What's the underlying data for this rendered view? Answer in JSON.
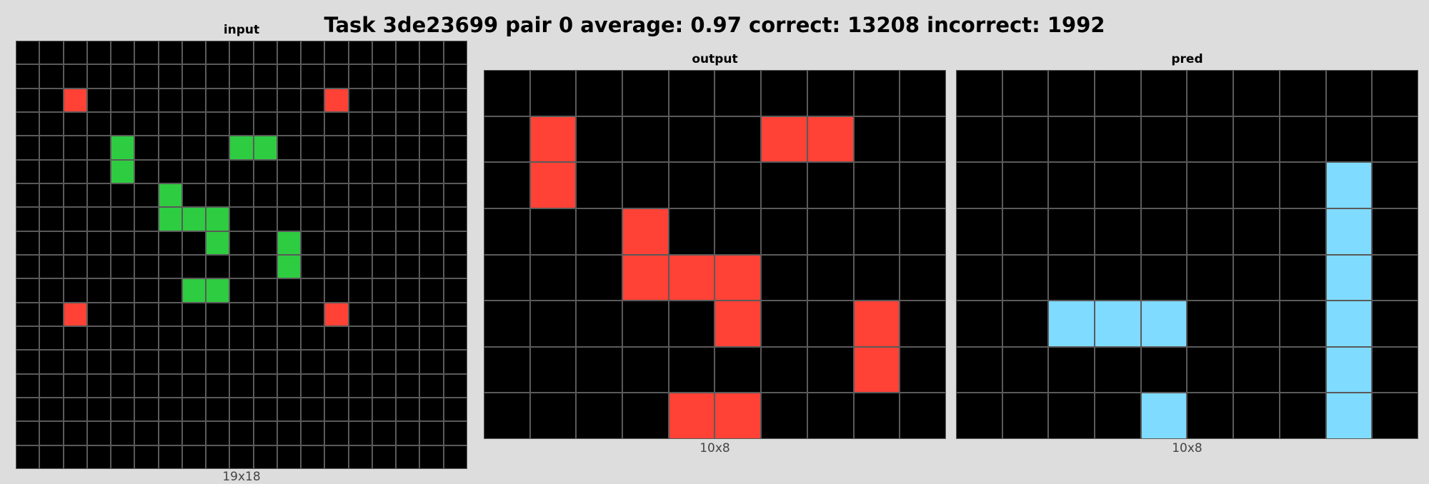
{
  "header": {
    "title": "Task 3de23699 pair 0 average: 0.97 correct: 13208 incorrect: 1992"
  },
  "palette": {
    "0": "#000000",
    "2": "#ff4136",
    "3": "#2ecc40",
    "8": "#7fdbff"
  },
  "panels": [
    {
      "title": "input",
      "dims": "19x18",
      "rows": [
        [
          0,
          0,
          0,
          0,
          0,
          0,
          0,
          0,
          0,
          0,
          0,
          0,
          0,
          0,
          0,
          0,
          0,
          0,
          0
        ],
        [
          0,
          0,
          0,
          0,
          0,
          0,
          0,
          0,
          0,
          0,
          0,
          0,
          0,
          0,
          0,
          0,
          0,
          0,
          0
        ],
        [
          0,
          0,
          2,
          0,
          0,
          0,
          0,
          0,
          0,
          0,
          0,
          0,
          0,
          2,
          0,
          0,
          0,
          0,
          0
        ],
        [
          0,
          0,
          0,
          0,
          0,
          0,
          0,
          0,
          0,
          0,
          0,
          0,
          0,
          0,
          0,
          0,
          0,
          0,
          0
        ],
        [
          0,
          0,
          0,
          0,
          3,
          0,
          0,
          0,
          0,
          3,
          3,
          0,
          0,
          0,
          0,
          0,
          0,
          0,
          0
        ],
        [
          0,
          0,
          0,
          0,
          3,
          0,
          0,
          0,
          0,
          0,
          0,
          0,
          0,
          0,
          0,
          0,
          0,
          0,
          0
        ],
        [
          0,
          0,
          0,
          0,
          0,
          0,
          3,
          0,
          0,
          0,
          0,
          0,
          0,
          0,
          0,
          0,
          0,
          0,
          0
        ],
        [
          0,
          0,
          0,
          0,
          0,
          0,
          3,
          3,
          3,
          0,
          0,
          0,
          0,
          0,
          0,
          0,
          0,
          0,
          0
        ],
        [
          0,
          0,
          0,
          0,
          0,
          0,
          0,
          0,
          3,
          0,
          0,
          3,
          0,
          0,
          0,
          0,
          0,
          0,
          0
        ],
        [
          0,
          0,
          0,
          0,
          0,
          0,
          0,
          0,
          0,
          0,
          0,
          3,
          0,
          0,
          0,
          0,
          0,
          0,
          0
        ],
        [
          0,
          0,
          0,
          0,
          0,
          0,
          0,
          3,
          3,
          0,
          0,
          0,
          0,
          0,
          0,
          0,
          0,
          0,
          0
        ],
        [
          0,
          0,
          2,
          0,
          0,
          0,
          0,
          0,
          0,
          0,
          0,
          0,
          0,
          2,
          0,
          0,
          0,
          0,
          0
        ],
        [
          0,
          0,
          0,
          0,
          0,
          0,
          0,
          0,
          0,
          0,
          0,
          0,
          0,
          0,
          0,
          0,
          0,
          0,
          0
        ],
        [
          0,
          0,
          0,
          0,
          0,
          0,
          0,
          0,
          0,
          0,
          0,
          0,
          0,
          0,
          0,
          0,
          0,
          0,
          0
        ],
        [
          0,
          0,
          0,
          0,
          0,
          0,
          0,
          0,
          0,
          0,
          0,
          0,
          0,
          0,
          0,
          0,
          0,
          0,
          0
        ],
        [
          0,
          0,
          0,
          0,
          0,
          0,
          0,
          0,
          0,
          0,
          0,
          0,
          0,
          0,
          0,
          0,
          0,
          0,
          0
        ],
        [
          0,
          0,
          0,
          0,
          0,
          0,
          0,
          0,
          0,
          0,
          0,
          0,
          0,
          0,
          0,
          0,
          0,
          0,
          0
        ],
        [
          0,
          0,
          0,
          0,
          0,
          0,
          0,
          0,
          0,
          0,
          0,
          0,
          0,
          0,
          0,
          0,
          0,
          0,
          0
        ]
      ]
    },
    {
      "title": "output",
      "dims": "10x8",
      "rows": [
        [
          0,
          0,
          0,
          0,
          0,
          0,
          0,
          0,
          0,
          0
        ],
        [
          0,
          2,
          0,
          0,
          0,
          0,
          2,
          2,
          0,
          0
        ],
        [
          0,
          2,
          0,
          0,
          0,
          0,
          0,
          0,
          0,
          0
        ],
        [
          0,
          0,
          0,
          2,
          0,
          0,
          0,
          0,
          0,
          0
        ],
        [
          0,
          0,
          0,
          2,
          2,
          2,
          0,
          0,
          0,
          0
        ],
        [
          0,
          0,
          0,
          0,
          0,
          2,
          0,
          0,
          2,
          0
        ],
        [
          0,
          0,
          0,
          0,
          0,
          0,
          0,
          0,
          2,
          0
        ],
        [
          0,
          0,
          0,
          0,
          2,
          2,
          0,
          0,
          0,
          0
        ]
      ]
    },
    {
      "title": "pred",
      "dims": "10x8",
      "rows": [
        [
          0,
          0,
          0,
          0,
          0,
          0,
          0,
          0,
          0,
          0
        ],
        [
          0,
          0,
          0,
          0,
          0,
          0,
          0,
          0,
          0,
          0
        ],
        [
          0,
          0,
          0,
          0,
          0,
          0,
          0,
          0,
          8,
          0
        ],
        [
          0,
          0,
          0,
          0,
          0,
          0,
          0,
          0,
          8,
          0
        ],
        [
          0,
          0,
          0,
          0,
          0,
          0,
          0,
          0,
          8,
          0
        ],
        [
          0,
          0,
          8,
          8,
          8,
          0,
          0,
          0,
          8,
          0
        ],
        [
          0,
          0,
          0,
          0,
          0,
          0,
          0,
          0,
          8,
          0
        ],
        [
          0,
          0,
          0,
          0,
          8,
          0,
          0,
          0,
          8,
          0
        ]
      ]
    }
  ]
}
